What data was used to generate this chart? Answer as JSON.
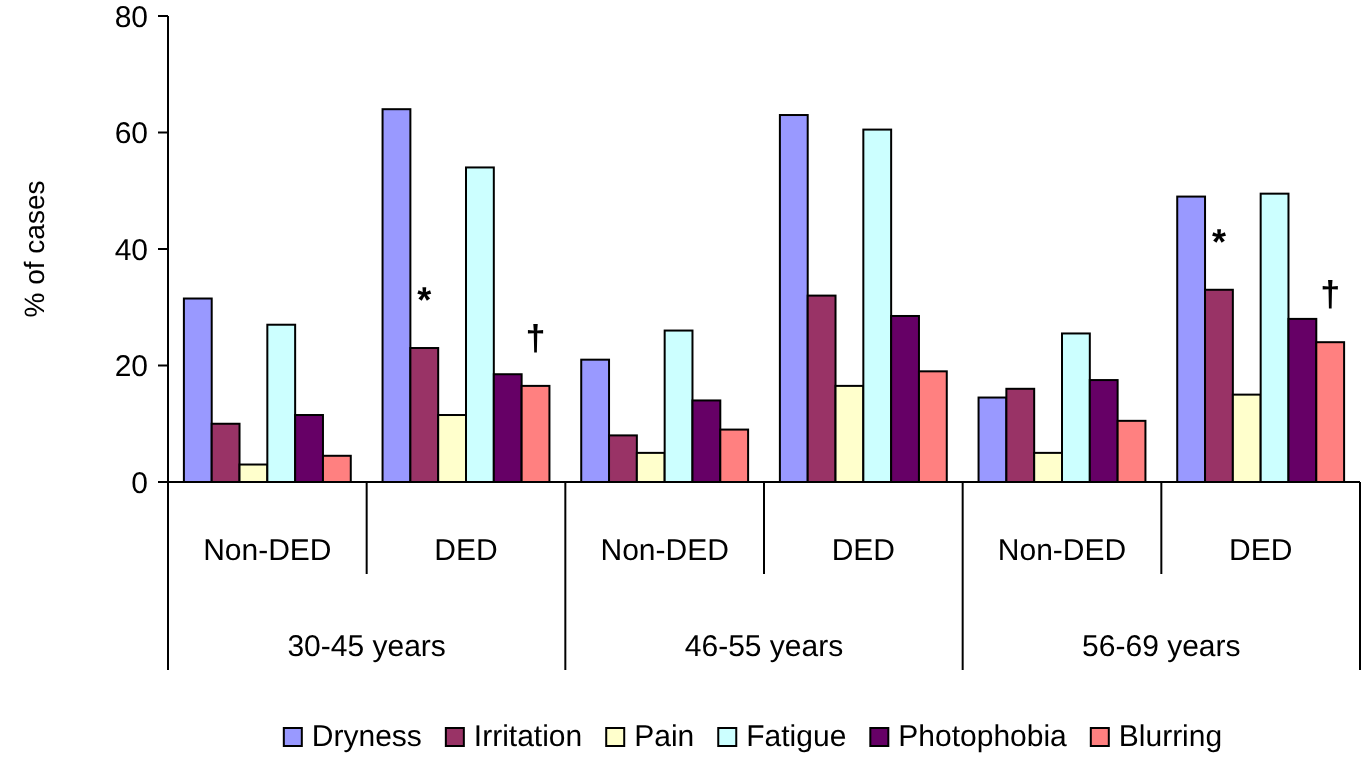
{
  "chart_data": {
    "type": "bar",
    "ylabel": "% of cases",
    "categories": [
      "Non-DED",
      "DED",
      "Non-DED",
      "DED",
      "Non-DED",
      "DED"
    ],
    "series": [
      {
        "name": "Dryness",
        "color": "#9999ff",
        "values": [
          31.5,
          64,
          21,
          63,
          14.5,
          49
        ]
      },
      {
        "name": "Irritation",
        "color": "#993366",
        "values": [
          10,
          23,
          8,
          32,
          16,
          33
        ]
      },
      {
        "name": "Pain",
        "color": "#ffffcc",
        "values": [
          3,
          11.5,
          5,
          16.5,
          5,
          15
        ]
      },
      {
        "name": "Fatigue",
        "color": "#ccffff",
        "values": [
          27,
          54,
          26,
          60.5,
          25.5,
          49.5
        ]
      },
      {
        "name": "Photophobia",
        "color": "#660066",
        "values": [
          11.5,
          18.5,
          14,
          28.5,
          17.5,
          28
        ]
      },
      {
        "name": "Blurring",
        "color": "#ff8080",
        "values": [
          4.5,
          16.5,
          9,
          19,
          10.5,
          24
        ]
      }
    ],
    "annotations": [
      "30-45 years",
      "46-55 years",
      "56-69 years",
      {
        "text": "*",
        "x": "DED",
        "y": 23
      },
      {
        "text": "†",
        "x": "DED",
        "y": 16.5
      },
      {
        "text": "*",
        "y": 33
      },
      {
        "text": "†",
        "y": 24
      }
    ],
    "ylim": [
      0,
      80
    ],
    "yticks": [
      0,
      20,
      40,
      60,
      80
    ],
    "grid": false,
    "legend": "bottom"
  }
}
